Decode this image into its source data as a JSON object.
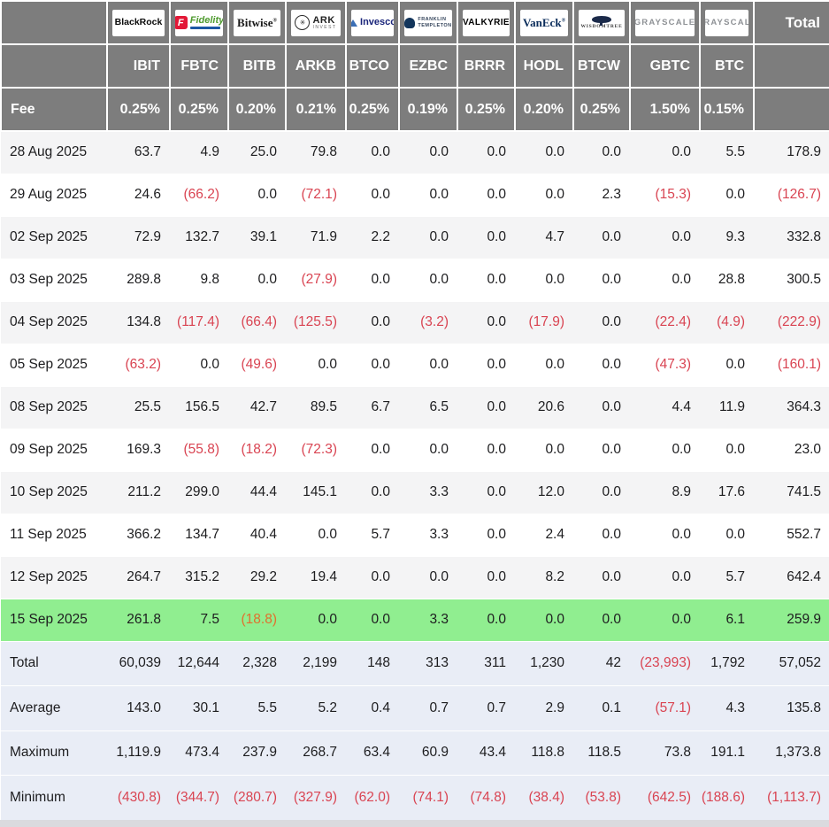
{
  "colors": {
    "header_bg": "#7d7d7d",
    "header_text": "#ffffff",
    "highlight_green": "#90ee90",
    "negative_red": "#d94452",
    "summary_bg": "#e9edf6",
    "row_stripe": "#f4f4f5"
  },
  "chart_data": {
    "type": "table",
    "corner_label": "Fee",
    "total_label": "Total",
    "columns": [
      {
        "provider": "BlackRock",
        "logo": "blackrock-logo",
        "ticker": "IBIT",
        "fee": "0.25%"
      },
      {
        "provider": "Fidelity",
        "logo": "fidelity-logo",
        "ticker": "FBTC",
        "fee": "0.25%"
      },
      {
        "provider": "Bitwise",
        "logo": "bitwise-logo",
        "ticker": "BITB",
        "fee": "0.20%"
      },
      {
        "provider": "ARK Invest",
        "logo": "ark-logo",
        "ticker": "ARKB",
        "fee": "0.21%"
      },
      {
        "provider": "Invesco",
        "logo": "invesco-logo",
        "ticker": "BTCO",
        "fee": "0.25%"
      },
      {
        "provider": "Franklin Templeton",
        "logo": "franklin-logo",
        "ticker": "EZBC",
        "fee": "0.19%"
      },
      {
        "provider": "Valkyrie",
        "logo": "valkyrie-logo",
        "ticker": "BRRR",
        "fee": "0.25%"
      },
      {
        "provider": "VanEck",
        "logo": "vaneck-logo",
        "ticker": "HODL",
        "fee": "0.20%"
      },
      {
        "provider": "WisdomTree",
        "logo": "wisdomtree-logo",
        "ticker": "BTCW",
        "fee": "0.25%"
      },
      {
        "provider": "Grayscale",
        "logo": "grayscale-logo",
        "ticker": "GBTC",
        "fee": "1.50%"
      },
      {
        "provider": "Grayscale",
        "logo": "grayscale-logo",
        "ticker": "BTC",
        "fee": "0.15%"
      }
    ],
    "rows": [
      {
        "date": "28 Aug 2025",
        "values": [
          "63.7",
          "4.9",
          "25.0",
          "79.8",
          "0.0",
          "0.0",
          "0.0",
          "0.0",
          "0.0",
          "0.0",
          "5.5"
        ],
        "total": "178.9",
        "highlight": false
      },
      {
        "date": "29 Aug 2025",
        "values": [
          "24.6",
          "(66.2)",
          "0.0",
          "(72.1)",
          "0.0",
          "0.0",
          "0.0",
          "0.0",
          "2.3",
          "(15.3)",
          "0.0"
        ],
        "total": "(126.7)",
        "highlight": false
      },
      {
        "date": "02 Sep 2025",
        "values": [
          "72.9",
          "132.7",
          "39.1",
          "71.9",
          "2.2",
          "0.0",
          "0.0",
          "4.7",
          "0.0",
          "0.0",
          "9.3"
        ],
        "total": "332.8",
        "highlight": false
      },
      {
        "date": "03 Sep 2025",
        "values": [
          "289.8",
          "9.8",
          "0.0",
          "(27.9)",
          "0.0",
          "0.0",
          "0.0",
          "0.0",
          "0.0",
          "0.0",
          "28.8"
        ],
        "total": "300.5",
        "highlight": false
      },
      {
        "date": "04 Sep 2025",
        "values": [
          "134.8",
          "(117.4)",
          "(66.4)",
          "(125.5)",
          "0.0",
          "(3.2)",
          "0.0",
          "(17.9)",
          "0.0",
          "(22.4)",
          "(4.9)"
        ],
        "total": "(222.9)",
        "highlight": false
      },
      {
        "date": "05 Sep 2025",
        "values": [
          "(63.2)",
          "0.0",
          "(49.6)",
          "0.0",
          "0.0",
          "0.0",
          "0.0",
          "0.0",
          "0.0",
          "(47.3)",
          "0.0"
        ],
        "total": "(160.1)",
        "highlight": false
      },
      {
        "date": "08 Sep 2025",
        "values": [
          "25.5",
          "156.5",
          "42.7",
          "89.5",
          "6.7",
          "6.5",
          "0.0",
          "20.6",
          "0.0",
          "4.4",
          "11.9"
        ],
        "total": "364.3",
        "highlight": false
      },
      {
        "date": "09 Sep 2025",
        "values": [
          "169.3",
          "(55.8)",
          "(18.2)",
          "(72.3)",
          "0.0",
          "0.0",
          "0.0",
          "0.0",
          "0.0",
          "0.0",
          "0.0"
        ],
        "total": "23.0",
        "highlight": false
      },
      {
        "date": "10 Sep 2025",
        "values": [
          "211.2",
          "299.0",
          "44.4",
          "145.1",
          "0.0",
          "3.3",
          "0.0",
          "12.0",
          "0.0",
          "8.9",
          "17.6"
        ],
        "total": "741.5",
        "highlight": false
      },
      {
        "date": "11 Sep 2025",
        "values": [
          "366.2",
          "134.7",
          "40.4",
          "0.0",
          "5.7",
          "3.3",
          "0.0",
          "2.4",
          "0.0",
          "0.0",
          "0.0"
        ],
        "total": "552.7",
        "highlight": false
      },
      {
        "date": "12 Sep 2025",
        "values": [
          "264.7",
          "315.2",
          "29.2",
          "19.4",
          "0.0",
          "0.0",
          "0.0",
          "8.2",
          "0.0",
          "0.0",
          "5.7"
        ],
        "total": "642.4",
        "highlight": false
      },
      {
        "date": "15 Sep 2025",
        "values": [
          "261.8",
          "7.5",
          "(18.8)",
          "0.0",
          "0.0",
          "3.3",
          "0.0",
          "0.0",
          "0.0",
          "0.0",
          "6.1"
        ],
        "total": "259.9",
        "highlight": true
      }
    ],
    "summary_rows": [
      {
        "label": "Total",
        "values": [
          "60,039",
          "12,644",
          "2,328",
          "2,199",
          "148",
          "313",
          "311",
          "1,230",
          "42",
          "(23,993)",
          "1,792"
        ],
        "total": "57,052"
      },
      {
        "label": "Average",
        "values": [
          "143.0",
          "30.1",
          "5.5",
          "5.2",
          "0.4",
          "0.7",
          "0.7",
          "2.9",
          "0.1",
          "(57.1)",
          "4.3"
        ],
        "total": "135.8"
      },
      {
        "label": "Maximum",
        "values": [
          "1,119.9",
          "473.4",
          "237.9",
          "268.7",
          "63.4",
          "60.9",
          "43.4",
          "118.8",
          "118.5",
          "73.8",
          "191.1"
        ],
        "total": "1,373.8"
      },
      {
        "label": "Minimum",
        "values": [
          "(430.8)",
          "(344.7)",
          "(280.7)",
          "(327.9)",
          "(62.0)",
          "(74.1)",
          "(74.8)",
          "(38.4)",
          "(53.8)",
          "(642.5)",
          "(188.6)"
        ],
        "total": "(1,113.7)"
      }
    ]
  }
}
